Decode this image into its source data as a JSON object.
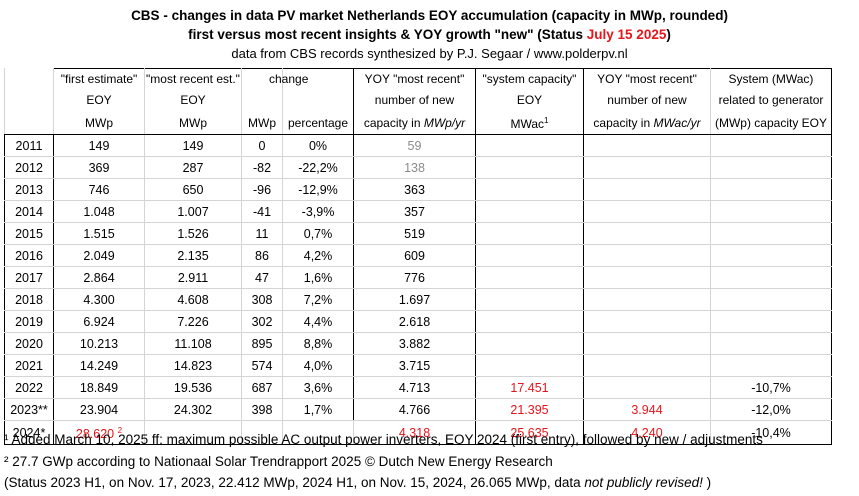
{
  "title": {
    "line1": "CBS - changes in data PV market Netherlands EOY accumulation (capacity in MWp, rounded)",
    "line2_prefix": "first versus most recent insights & YOY growth \"new\" (Status ",
    "line2_date": "July 15 2025",
    "line2_suffix": ")",
    "line3": "data from CBS records synthesized by P.J. Segaar / www.polderpv.nl"
  },
  "headers": {
    "first_estimate": [
      "\"first estimate\"",
      "EOY",
      "MWp"
    ],
    "most_recent": [
      "\"most recent est.\"",
      "EOY",
      "MWp"
    ],
    "change": "change",
    "change_mwp": "MWp",
    "change_pct": "percentage",
    "yoy_new": [
      "YOY \"most recent\"",
      "number  of new",
      "capacity in "
    ],
    "yoy_new_unit": "MWp/yr",
    "system_capacity": [
      "\"system capacity\"",
      "EOY",
      "MWac"
    ],
    "system_capacity_sup": "1",
    "yoy_ac": [
      "YOY \"most recent\"",
      "number of new",
      "capacity in "
    ],
    "yoy_ac_unit": "MWac/yr",
    "ratio": [
      "System (MWac)",
      "related to generator",
      "(MWp) capacity EOY"
    ]
  },
  "rows": [
    {
      "year": "2011",
      "first": "149",
      "recent": "149",
      "chg": "0",
      "pct": "0%",
      "yoy": "59",
      "yoy_gray": true,
      "sys": "",
      "yoy_ac": "",
      "ratio": ""
    },
    {
      "year": "2012",
      "first": "369",
      "recent": "287",
      "chg": "-82",
      "pct": "-22,2%",
      "yoy": "138",
      "yoy_gray": true,
      "sys": "",
      "yoy_ac": "",
      "ratio": ""
    },
    {
      "year": "2013",
      "first": "746",
      "recent": "650",
      "chg": "-96",
      "pct": "-12,9%",
      "yoy": "363",
      "sys": "",
      "yoy_ac": "",
      "ratio": ""
    },
    {
      "year": "2014",
      "first": "1.048",
      "recent": "1.007",
      "chg": "-41",
      "pct": "-3,9%",
      "yoy": "357",
      "sys": "",
      "yoy_ac": "",
      "ratio": ""
    },
    {
      "year": "2015",
      "first": "1.515",
      "recent": "1.526",
      "chg": "11",
      "pct": "0,7%",
      "yoy": "519",
      "sys": "",
      "yoy_ac": "",
      "ratio": ""
    },
    {
      "year": "2016",
      "first": "2.049",
      "recent": "2.135",
      "chg": "86",
      "pct": "4,2%",
      "yoy": "609",
      "sys": "",
      "yoy_ac": "",
      "ratio": ""
    },
    {
      "year": "2017",
      "first": "2.864",
      "recent": "2.911",
      "chg": "47",
      "pct": "1,6%",
      "yoy": "776",
      "sys": "",
      "yoy_ac": "",
      "ratio": ""
    },
    {
      "year": "2018",
      "first": "4.300",
      "recent": "4.608",
      "chg": "308",
      "pct": "7,2%",
      "yoy": "1.697",
      "sys": "",
      "yoy_ac": "",
      "ratio": ""
    },
    {
      "year": "2019",
      "first": "6.924",
      "recent": "7.226",
      "chg": "302",
      "pct": "4,4%",
      "yoy": "2.618",
      "sys": "",
      "yoy_ac": "",
      "ratio": ""
    },
    {
      "year": "2020",
      "first": "10.213",
      "recent": "11.108",
      "chg": "895",
      "pct": "8,8%",
      "yoy": "3.882",
      "sys": "",
      "yoy_ac": "",
      "ratio": ""
    },
    {
      "year": "2021",
      "first": "14.249",
      "recent": "14.823",
      "chg": "574",
      "pct": "4,0%",
      "yoy": "3.715",
      "sys": "",
      "yoy_ac": "",
      "ratio": ""
    },
    {
      "year": "2022",
      "first": "18.849",
      "recent": "19.536",
      "chg": "687",
      "pct": "3,6%",
      "yoy": "4.713",
      "sys": "17.451",
      "yoy_ac": "",
      "ratio": "-10,7%"
    },
    {
      "year": "2023**",
      "first": "23.904",
      "recent": "24.302",
      "chg": "398",
      "pct": "1,7%",
      "yoy": "4.766",
      "sys": "21.395",
      "yoy_ac": "3.944",
      "ratio": "-12,0%"
    },
    {
      "year": "2024*",
      "first": "28.620",
      "first_sup": "2",
      "first_red": true,
      "recent": "",
      "chg": "",
      "pct": "",
      "yoy": "4.318",
      "yoy_red": true,
      "sys": "25.635",
      "yoy_ac": "4.240",
      "ratio": "-10,4%"
    }
  ],
  "footnotes": {
    "f1": "¹ Added March 10, 2025 ff: maximum possible AC output power inverters, EOY 2024 (first entry), followed by new / adjustments",
    "f2": "² 27.7 GWp according to Nationaal Solar Trendrapport 2025 © Dutch New Energy Research",
    "f3_prefix": "(Status 2023 H1, on Nov. 17, 2023, 22.412 MWp,  2024 H1, on Nov. 15, 2024, 26.065 MWp, data ",
    "f3_italic": "not publicly revised!",
    "f3_suffix": " )"
  },
  "colors": {
    "red": "#e8141b",
    "gray": "#8a8a8a"
  }
}
